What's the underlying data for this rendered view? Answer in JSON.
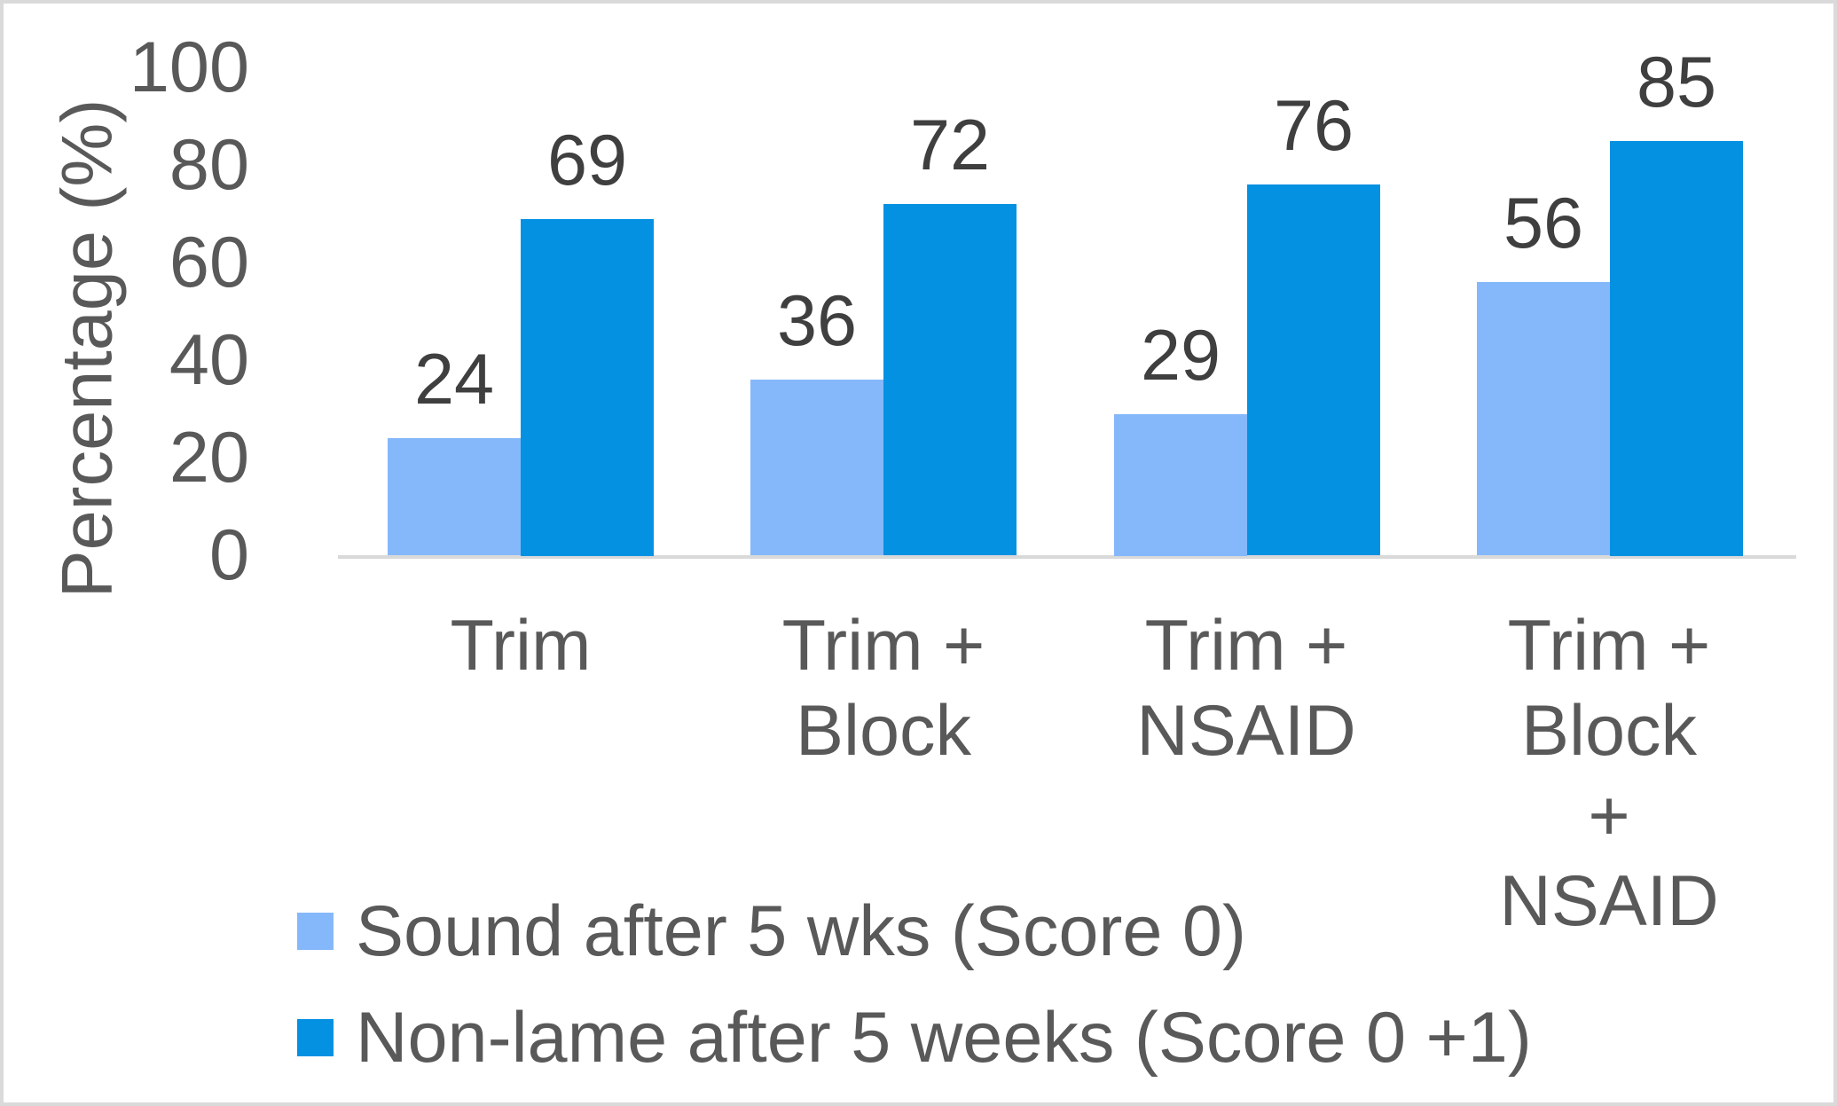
{
  "colors": {
    "series_light": "#85B8FA",
    "series_dark": "#0591E2",
    "axis_line": "#D9D9D9",
    "axis_text": "#595959",
    "data_label_text": "#3F3F3F",
    "canvas_border": "#DADADA",
    "background": "#FFFFFF"
  },
  "chart_data": {
    "type": "bar",
    "title": "",
    "ylabel": "Percentage (%)",
    "xlabel": "",
    "ylim": [
      0,
      100
    ],
    "yticks": [
      0,
      20,
      40,
      60,
      80,
      100
    ],
    "grid": false,
    "data_labels": true,
    "legend_position": "bottom-left",
    "categories": [
      "Trim",
      "Trim + Block",
      "Trim + NSAID",
      "Trim + Block + NSAID"
    ],
    "category_lines": [
      [
        "Trim"
      ],
      [
        "Trim +",
        "Block"
      ],
      [
        "Trim +",
        "NSAID"
      ],
      [
        "Trim +",
        "Block +",
        "NSAID"
      ]
    ],
    "series": [
      {
        "name": "Sound after 5 wks (Score 0)",
        "color": "#85B8FA",
        "values": [
          24,
          36,
          29,
          56
        ]
      },
      {
        "name": "Non-lame after 5 weeks (Score 0 +1)",
        "color": "#0591E2",
        "values": [
          69,
          72,
          76,
          85
        ]
      }
    ]
  }
}
